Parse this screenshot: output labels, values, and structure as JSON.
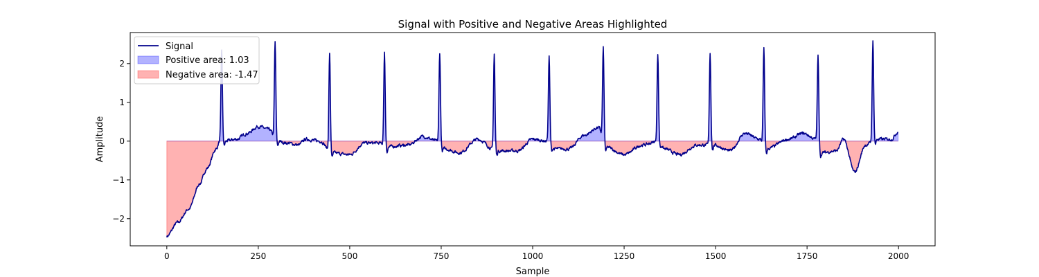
{
  "chart_data": {
    "type": "area",
    "title": "Signal with Positive and Negative Areas Highlighted",
    "xlabel": "Sample",
    "ylabel": "Amplitude",
    "xlim": [
      -100,
      2100
    ],
    "ylim": [
      -2.7,
      2.8
    ],
    "xticks": [
      0,
      250,
      500,
      750,
      1000,
      1250,
      1500,
      1750,
      2000
    ],
    "yticks": [
      -2,
      -1,
      0,
      1,
      2
    ],
    "legend_position": "top-left",
    "colors": {
      "signal": "#00008b",
      "positive_fill": "#0000ff",
      "negative_fill": "#ff0000"
    },
    "series": [
      {
        "name": "Signal",
        "kind": "line"
      },
      {
        "name": "Positive area: 1.03",
        "kind": "fill-positive"
      },
      {
        "name": "Negative area: -1.47",
        "kind": "fill-negative"
      }
    ],
    "signal_model": {
      "n_samples": 2000,
      "baseline_start": -2.4,
      "baseline_decay_samples": 55,
      "peaks": [
        {
          "x": 150,
          "y": 2.35
        },
        {
          "x": 296,
          "y": 2.55
        },
        {
          "x": 445,
          "y": 2.25
        },
        {
          "x": 595,
          "y": 2.27
        },
        {
          "x": 746,
          "y": 2.27
        },
        {
          "x": 895,
          "y": 2.25
        },
        {
          "x": 1045,
          "y": 2.18
        },
        {
          "x": 1193,
          "y": 2.4
        },
        {
          "x": 1342,
          "y": 2.25
        },
        {
          "x": 1485,
          "y": 2.28
        },
        {
          "x": 1632,
          "y": 2.38
        },
        {
          "x": 1780,
          "y": 2.2
        },
        {
          "x": 1930,
          "y": 2.57
        }
      ],
      "baseline_knots": [
        [
          0,
          -2.45
        ],
        [
          30,
          -2.1
        ],
        [
          60,
          -1.75
        ],
        [
          90,
          -1.1
        ],
        [
          110,
          -0.7
        ],
        [
          135,
          -0.2
        ],
        [
          145,
          0.0
        ],
        [
          160,
          0.0
        ],
        [
          190,
          0.05
        ],
        [
          220,
          0.2
        ],
        [
          250,
          0.38
        ],
        [
          280,
          0.3
        ],
        [
          300,
          0.0
        ],
        [
          330,
          -0.05
        ],
        [
          360,
          -0.1
        ],
        [
          380,
          0.05
        ],
        [
          420,
          0.0
        ],
        [
          450,
          -0.3
        ],
        [
          500,
          -0.35
        ],
        [
          540,
          -0.05
        ],
        [
          580,
          -0.05
        ],
        [
          600,
          -0.15
        ],
        [
          660,
          -0.1
        ],
        [
          700,
          0.12
        ],
        [
          740,
          0.0
        ],
        [
          760,
          -0.2
        ],
        [
          800,
          -0.3
        ],
        [
          850,
          0.05
        ],
        [
          900,
          -0.25
        ],
        [
          960,
          -0.25
        ],
        [
          1000,
          0.05
        ],
        [
          1040,
          0.0
        ],
        [
          1060,
          -0.2
        ],
        [
          1100,
          -0.2
        ],
        [
          1140,
          0.15
        ],
        [
          1180,
          0.35
        ],
        [
          1200,
          -0.15
        ],
        [
          1250,
          -0.35
        ],
        [
          1300,
          -0.1
        ],
        [
          1345,
          0.0
        ],
        [
          1360,
          -0.2
        ],
        [
          1400,
          -0.35
        ],
        [
          1450,
          -0.1
        ],
        [
          1495,
          -0.1
        ],
        [
          1540,
          -0.25
        ],
        [
          1580,
          0.2
        ],
        [
          1620,
          0.05
        ],
        [
          1640,
          -0.2
        ],
        [
          1700,
          0.05
        ],
        [
          1740,
          0.2
        ],
        [
          1775,
          0.05
        ],
        [
          1790,
          -0.3
        ],
        [
          1830,
          -0.25
        ],
        [
          1850,
          0.05
        ],
        [
          1880,
          -0.8
        ],
        [
          1910,
          -0.1
        ],
        [
          1940,
          0.05
        ],
        [
          1980,
          0.05
        ],
        [
          2000,
          0.25
        ]
      ]
    }
  }
}
